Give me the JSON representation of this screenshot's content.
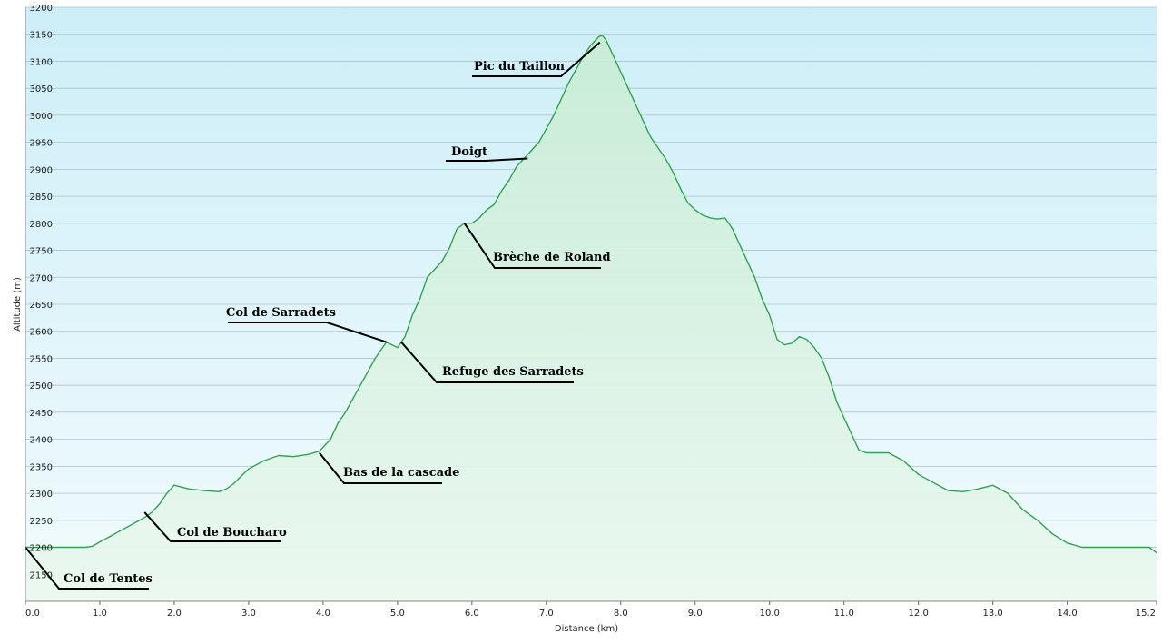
{
  "chart_data": {
    "type": "area",
    "xlabel": "Distance   (km)",
    "ylabel": "Altitude  (m)",
    "xlim": [
      0,
      15.2
    ],
    "ylim": [
      2100,
      3200
    ],
    "x_ticks": [
      0,
      1,
      2,
      3,
      4,
      5,
      6,
      7,
      8,
      9,
      10,
      11,
      12,
      13,
      14,
      15.2
    ],
    "x_tick_labels": [
      "0.0",
      "1.0",
      "2.0",
      "3.0",
      "4.0",
      "5.0",
      "6.0",
      "7.0",
      "8.0",
      "9.0",
      "10.0",
      "11.0",
      "12.0",
      "13.0",
      "14.0",
      "15.2"
    ],
    "y_ticks": [
      2150,
      2200,
      2250,
      2300,
      2350,
      2400,
      2450,
      2500,
      2550,
      2600,
      2650,
      2700,
      2750,
      2800,
      2850,
      2900,
      2950,
      3000,
      3050,
      3100,
      3150,
      3200
    ],
    "grid": true,
    "colors": {
      "line": "#2ea44f",
      "fill": "#d6f2df",
      "bg_top": "#cdeef8",
      "bg_bottom": "#f2fbfd",
      "grid": "#a9c4cc"
    },
    "series": [
      {
        "x": [
          0,
          0.3,
          0.6,
          0.8,
          0.9,
          1.0,
          1.2,
          1.4,
          1.6,
          1.7,
          1.8,
          1.9,
          2.0,
          2.2,
          2.4,
          2.6,
          2.7,
          2.8,
          2.9,
          3.0,
          3.2,
          3.4,
          3.6,
          3.8,
          3.95,
          4.1,
          4.2,
          4.3,
          4.5,
          4.7,
          4.85,
          5.0,
          5.05,
          5.1,
          5.2,
          5.3,
          5.4,
          5.5,
          5.6,
          5.7,
          5.8,
          5.9,
          6.0,
          6.1,
          6.2,
          6.3,
          6.4,
          6.5,
          6.6,
          6.7,
          6.8,
          6.9,
          7.0,
          7.1,
          7.2,
          7.3,
          7.4,
          7.5,
          7.6,
          7.7,
          7.75,
          7.8,
          7.9,
          8.0,
          8.1,
          8.2,
          8.3,
          8.4,
          8.5,
          8.6,
          8.7,
          8.8,
          8.9,
          9.0,
          9.1,
          9.2,
          9.3,
          9.4,
          9.5,
          9.6,
          9.7,
          9.8,
          9.9,
          10.0,
          10.1,
          10.2,
          10.3,
          10.4,
          10.5,
          10.6,
          10.7,
          10.8,
          10.9,
          11.0,
          11.1,
          11.2,
          11.3,
          11.4,
          11.6,
          11.8,
          12.0,
          12.2,
          12.4,
          12.6,
          12.8,
          13.0,
          13.2,
          13.4,
          13.6,
          13.8,
          14.0,
          14.2,
          14.4,
          14.6,
          14.8,
          15.0,
          15.1,
          15.2
        ],
        "y": [
          2200,
          2200,
          2200,
          2200,
          2202,
          2210,
          2225,
          2240,
          2255,
          2265,
          2280,
          2300,
          2315,
          2308,
          2305,
          2303,
          2308,
          2318,
          2332,
          2345,
          2360,
          2370,
          2368,
          2372,
          2378,
          2400,
          2430,
          2450,
          2500,
          2550,
          2580,
          2570,
          2580,
          2590,
          2630,
          2660,
          2700,
          2715,
          2730,
          2755,
          2790,
          2800,
          2800,
          2810,
          2825,
          2835,
          2860,
          2880,
          2905,
          2920,
          2935,
          2950,
          2975,
          3000,
          3030,
          3060,
          3085,
          3110,
          3130,
          3145,
          3148,
          3140,
          3110,
          3080,
          3050,
          3020,
          2990,
          2960,
          2940,
          2920,
          2895,
          2865,
          2838,
          2825,
          2815,
          2810,
          2808,
          2810,
          2790,
          2760,
          2730,
          2700,
          2660,
          2630,
          2585,
          2575,
          2578,
          2590,
          2585,
          2570,
          2550,
          2515,
          2470,
          2440,
          2410,
          2380,
          2375,
          2375,
          2375,
          2360,
          2335,
          2320,
          2305,
          2303,
          2308,
          2315,
          2300,
          2270,
          2250,
          2225,
          2208,
          2200,
          2200,
          2200,
          2200,
          2200,
          2200,
          2190
        ]
      }
    ],
    "annotations": [
      {
        "label": "Pic du Taillon",
        "x": 7.72,
        "y": 3135
      },
      {
        "label": "Doigt",
        "x": 6.75,
        "y": 2920
      },
      {
        "label": "Brèche de Roland",
        "x": 5.9,
        "y": 2800
      },
      {
        "label": "Col de Sarradets",
        "x": 4.85,
        "y": 2580
      },
      {
        "label": "Refuge des Sarradets",
        "x": 5.05,
        "y": 2580
      },
      {
        "label": "Bas de la cascade",
        "x": 3.95,
        "y": 2375
      },
      {
        "label": "Col de Boucharo",
        "x": 1.6,
        "y": 2265
      },
      {
        "label": "Col de Tentes",
        "x": 0,
        "y": 2200
      }
    ]
  }
}
